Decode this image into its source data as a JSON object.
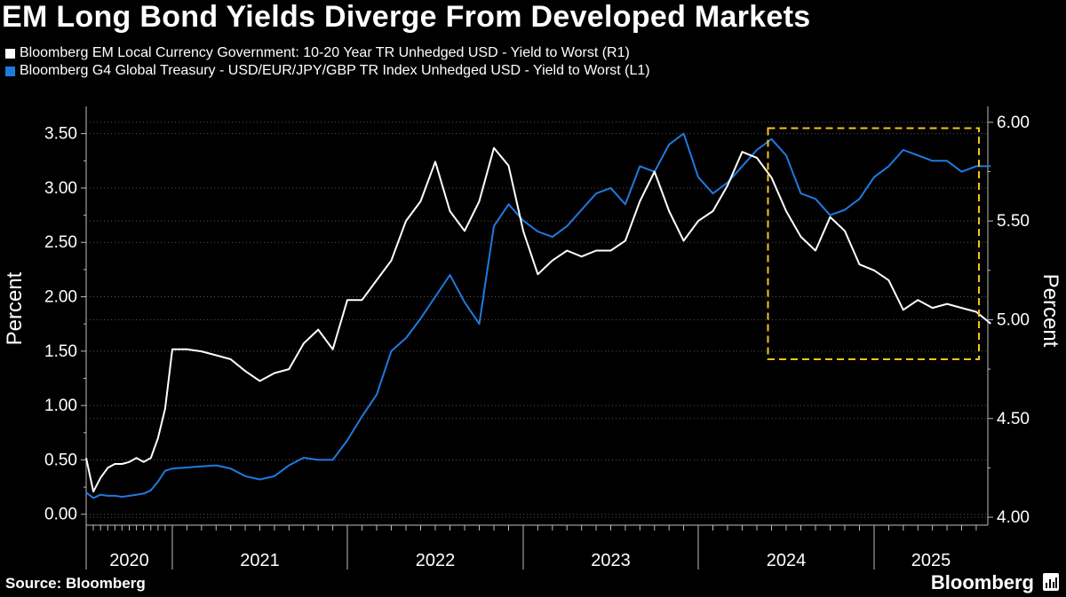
{
  "header": {
    "title": "EM Long Bond Yields Diverge From Developed Markets"
  },
  "legend": [
    {
      "label": "Bloomberg EM Local Currency Government: 10-20 Year TR Unhedged USD - Yield to Worst (R1)",
      "color": "#ffffff"
    },
    {
      "label": "Bloomberg G4 Global Treasury - USD/EUR/JPY/GBP TR Index Unhedged USD - Yield to Worst (L1)",
      "color": "#1f7ae0"
    }
  ],
  "footer": {
    "source": "Source: Bloomberg",
    "brand": "Bloomberg"
  },
  "chart_data": {
    "type": "line",
    "xlabel": "",
    "x_ticks": [
      "2020",
      "2021",
      "2022",
      "2023",
      "2024",
      "2025"
    ],
    "ylabel_left": "Percent",
    "ylabel_right": "Percent",
    "ylim_left": [
      -0.1,
      3.75
    ],
    "ylim_right": [
      3.96,
      6.08
    ],
    "yticks_left": [
      "0.00",
      "0.50",
      "1.00",
      "1.50",
      "2.00",
      "2.50",
      "3.00",
      "3.50"
    ],
    "yticks_right": [
      "4.00",
      "4.50",
      "5.00",
      "5.50",
      "6.00"
    ],
    "grid": "dotted",
    "highlight_box": {
      "color": "#f5c518",
      "style": "dashed",
      "x_range": [
        "2024-06",
        "2025-09"
      ],
      "y_range_right": [
        4.8,
        5.97
      ]
    },
    "series": [
      {
        "name": "Bloomberg EM Local Currency Government: 10-20 Year TR Unhedged USD - Yield to Worst (R1)",
        "axis": "right",
        "color": "#ffffff",
        "x": [
          "2020-01",
          "2020-02",
          "2020-03",
          "2020-04",
          "2020-05",
          "2020-06",
          "2020-07",
          "2020-08",
          "2020-09",
          "2020-10",
          "2020-11",
          "2020-12",
          "2021-01",
          "2021-02",
          "2021-03",
          "2021-04",
          "2021-05",
          "2021-06",
          "2021-07",
          "2021-08",
          "2021-09",
          "2021-10",
          "2021-11",
          "2021-12",
          "2022-01",
          "2022-02",
          "2022-03",
          "2022-04",
          "2022-05",
          "2022-06",
          "2022-07",
          "2022-08",
          "2022-09",
          "2022-10",
          "2022-11",
          "2022-12",
          "2023-01",
          "2023-02",
          "2023-03",
          "2023-04",
          "2023-05",
          "2023-06",
          "2023-07",
          "2023-08",
          "2023-09",
          "2023-10",
          "2023-11",
          "2023-12",
          "2024-01",
          "2024-02",
          "2024-03",
          "2024-04",
          "2024-05",
          "2024-06",
          "2024-07",
          "2024-08",
          "2024-09",
          "2024-10",
          "2024-11",
          "2024-12",
          "2025-01",
          "2025-02",
          "2025-03",
          "2025-04",
          "2025-05",
          "2025-06",
          "2025-07",
          "2025-08",
          "2025-09"
        ],
        "values": [
          4.3,
          4.13,
          4.2,
          4.25,
          4.27,
          4.27,
          4.28,
          4.3,
          4.28,
          4.3,
          4.4,
          4.55,
          4.85,
          4.85,
          4.84,
          4.82,
          4.8,
          4.74,
          4.69,
          4.73,
          4.75,
          4.88,
          4.95,
          4.85,
          5.1,
          5.1,
          5.2,
          5.3,
          5.5,
          5.6,
          5.8,
          5.55,
          5.45,
          5.6,
          5.87,
          5.78,
          5.45,
          5.23,
          5.3,
          5.35,
          5.32,
          5.35,
          5.35,
          5.4,
          5.6,
          5.75,
          5.55,
          5.4,
          5.5,
          5.55,
          5.68,
          5.85,
          5.82,
          5.72,
          5.55,
          5.42,
          5.35,
          5.52,
          5.45,
          5.28,
          5.25,
          5.2,
          5.05,
          5.1,
          5.06,
          5.08,
          5.06,
          5.04,
          4.98
        ]
      },
      {
        "name": "Bloomberg G4 Global Treasury - USD/EUR/JPY/GBP TR Index Unhedged USD - Yield to Worst (L1)",
        "axis": "left",
        "color": "#1f7ae0",
        "x": [
          "2020-01",
          "2020-02",
          "2020-03",
          "2020-04",
          "2020-05",
          "2020-06",
          "2020-07",
          "2020-08",
          "2020-09",
          "2020-10",
          "2020-11",
          "2020-12",
          "2021-01",
          "2021-02",
          "2021-03",
          "2021-04",
          "2021-05",
          "2021-06",
          "2021-07",
          "2021-08",
          "2021-09",
          "2021-10",
          "2021-11",
          "2021-12",
          "2022-01",
          "2022-02",
          "2022-03",
          "2022-04",
          "2022-05",
          "2022-06",
          "2022-07",
          "2022-08",
          "2022-09",
          "2022-10",
          "2022-11",
          "2022-12",
          "2023-01",
          "2023-02",
          "2023-03",
          "2023-04",
          "2023-05",
          "2023-06",
          "2023-07",
          "2023-08",
          "2023-09",
          "2023-10",
          "2023-11",
          "2023-12",
          "2024-01",
          "2024-02",
          "2024-03",
          "2024-04",
          "2024-05",
          "2024-06",
          "2024-07",
          "2024-08",
          "2024-09",
          "2024-10",
          "2024-11",
          "2024-12",
          "2025-01",
          "2025-02",
          "2025-03",
          "2025-04",
          "2025-05",
          "2025-06",
          "2025-07",
          "2025-08",
          "2025-09"
        ],
        "values": [
          0.2,
          0.15,
          0.18,
          0.17,
          0.17,
          0.16,
          0.17,
          0.18,
          0.19,
          0.22,
          0.3,
          0.4,
          0.42,
          0.43,
          0.44,
          0.45,
          0.42,
          0.35,
          0.32,
          0.35,
          0.45,
          0.52,
          0.5,
          0.5,
          0.68,
          0.9,
          1.1,
          1.5,
          1.62,
          1.8,
          2.0,
          2.2,
          1.95,
          1.75,
          2.65,
          2.85,
          2.7,
          2.6,
          2.55,
          2.65,
          2.8,
          2.95,
          3.0,
          2.85,
          3.2,
          3.15,
          3.4,
          3.5,
          3.1,
          2.95,
          3.05,
          3.2,
          3.35,
          3.45,
          3.3,
          2.95,
          2.9,
          2.75,
          2.8,
          2.9,
          3.1,
          3.2,
          3.35,
          3.3,
          3.25,
          3.25,
          3.15,
          3.2,
          3.2
        ]
      }
    ]
  }
}
